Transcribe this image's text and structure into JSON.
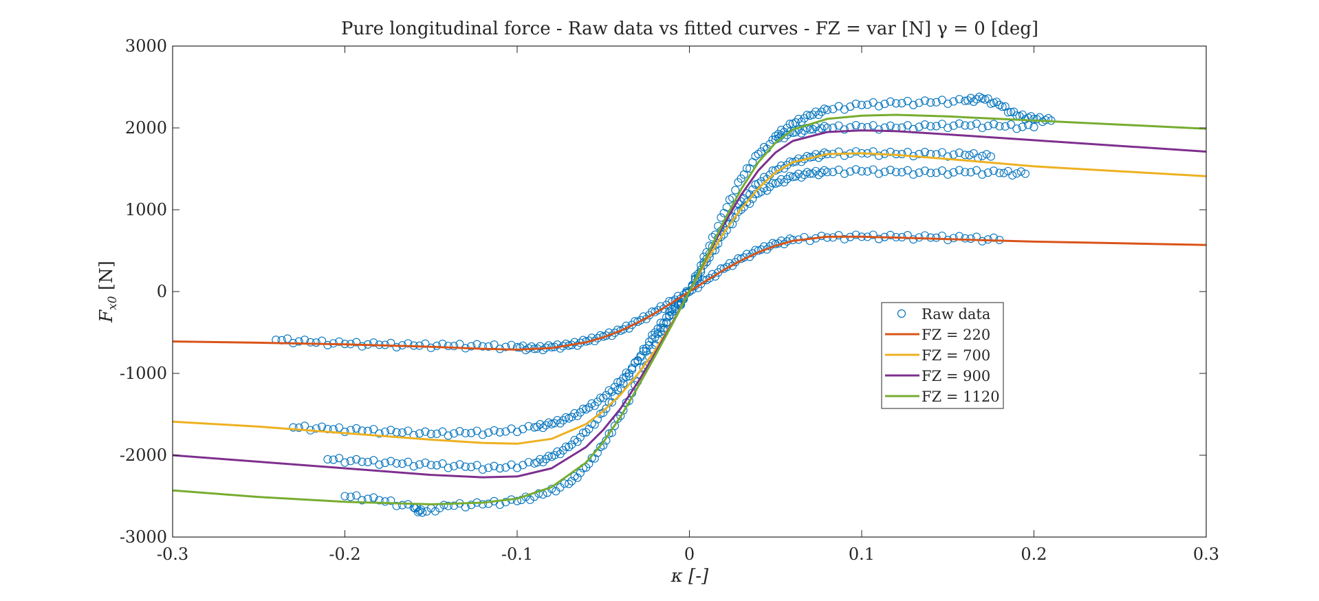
{
  "chart_data": {
    "type": "scatter",
    "title": "Pure longitudinal force - Raw data vs fitted curves - FZ = var [N] γ = 0 [deg]",
    "xlabel": "κ [-]",
    "ylabel_main": "F",
    "ylabel_sub": "x0",
    "ylabel_unit": " [N]",
    "xlim": [
      -0.3,
      0.3
    ],
    "ylim": [
      -3000,
      3000
    ],
    "xticks": [
      -0.3,
      -0.2,
      -0.1,
      0,
      0.1,
      0.2,
      0.3
    ],
    "xtick_labels": [
      "-0.3",
      "-0.2",
      "-0.1",
      "0",
      "0.1",
      "0.2",
      "0.3"
    ],
    "yticks": [
      3000,
      2000,
      1000,
      0,
      -1000,
      -2000,
      -3000
    ],
    "ytick_labels": [
      "3000",
      "2000",
      "1000",
      "0",
      "-1000",
      "-2000",
      "-3000"
    ],
    "grid": false,
    "legend_position": "center-right",
    "raw_data": {
      "name": "Raw data",
      "color": "#0072BD",
      "marker": "circle-open",
      "groups": [
        {
          "x": [
            -0.24,
            -0.22,
            -0.2,
            -0.18,
            -0.16,
            -0.14,
            -0.12,
            -0.1,
            -0.09,
            -0.08,
            -0.07,
            -0.06,
            -0.05,
            -0.04,
            -0.03,
            -0.02,
            -0.01,
            0,
            0.01,
            0.02,
            0.03,
            0.04,
            0.05,
            0.06,
            0.08,
            0.1,
            0.12,
            0.14,
            0.16,
            0.18
          ],
          "y": [
            -590,
            -620,
            -640,
            -650,
            -660,
            -665,
            -670,
            -680,
            -700,
            -680,
            -660,
            -610,
            -550,
            -480,
            -370,
            -250,
            -120,
            0,
            140,
            280,
            400,
            500,
            580,
            630,
            660,
            670,
            665,
            660,
            650,
            630
          ]
        },
        {
          "x": [
            -0.23,
            -0.21,
            -0.19,
            -0.17,
            -0.15,
            -0.13,
            -0.11,
            -0.09,
            -0.08,
            -0.07,
            -0.06,
            -0.05,
            -0.04,
            -0.03,
            -0.02,
            -0.01,
            0,
            0.01,
            0.02,
            0.03,
            0.04,
            0.05,
            0.06,
            0.07,
            0.08,
            0.1,
            0.12,
            0.14,
            0.16,
            0.18,
            0.195
          ],
          "y": [
            -1660,
            -1680,
            -1700,
            -1720,
            -1740,
            -1730,
            -1720,
            -1660,
            -1620,
            -1550,
            -1440,
            -1300,
            -1100,
            -850,
            -560,
            -280,
            0,
            360,
            700,
            1000,
            1200,
            1320,
            1400,
            1440,
            1460,
            1470,
            1460,
            1450,
            1460,
            1450,
            1440
          ]
        },
        {
          "x": [
            -0.21,
            -0.19,
            -0.17,
            -0.15,
            -0.13,
            -0.11,
            -0.09,
            -0.08,
            -0.07,
            -0.06,
            -0.05,
            -0.04,
            -0.03,
            -0.02,
            -0.01,
            0,
            0.01,
            0.02,
            0.03,
            0.04,
            0.05,
            0.06,
            0.07,
            0.08,
            0.1,
            0.12,
            0.14,
            0.16,
            0.175
          ],
          "y": [
            -2050,
            -2080,
            -2100,
            -2120,
            -2140,
            -2160,
            -2100,
            -2020,
            -1900,
            -1720,
            -1480,
            -1180,
            -840,
            -500,
            -220,
            0,
            400,
            780,
            1100,
            1320,
            1480,
            1580,
            1640,
            1680,
            1690,
            1680,
            1680,
            1670,
            1650
          ]
        },
        {
          "x": [
            -0.2,
            -0.18,
            -0.16,
            -0.155,
            -0.14,
            -0.12,
            -0.1,
            -0.085,
            -0.07,
            -0.06,
            -0.05,
            -0.04,
            -0.03,
            -0.02,
            -0.01,
            0,
            0.01,
            0.02,
            0.03,
            0.04,
            0.05,
            0.06,
            0.07,
            0.08,
            0.1,
            0.12,
            0.14,
            0.16,
            0.18,
            0.2
          ],
          "y": [
            -2500,
            -2550,
            -2640,
            -2700,
            -2620,
            -2600,
            -2560,
            -2480,
            -2350,
            -2150,
            -1880,
            -1520,
            -1100,
            -650,
            -250,
            0,
            480,
            960,
            1380,
            1680,
            1860,
            1940,
            1980,
            2000,
            2010,
            2000,
            2020,
            2030,
            2020,
            2010
          ]
        },
        {
          "x": [
            0.05,
            0.06,
            0.07,
            0.08,
            0.1,
            0.12,
            0.14,
            0.16,
            0.17,
            0.18,
            0.19,
            0.2,
            0.21
          ],
          "y": [
            1900,
            2050,
            2150,
            2220,
            2280,
            2300,
            2310,
            2330,
            2360,
            2280,
            2150,
            2110,
            2090
          ]
        }
      ]
    },
    "series": [
      {
        "name": "FZ = 220",
        "color": "#D95319",
        "x": [
          -0.3,
          -0.25,
          -0.2,
          -0.15,
          -0.12,
          -0.1,
          -0.08,
          -0.06,
          -0.05,
          -0.04,
          -0.03,
          -0.02,
          -0.01,
          0,
          0.01,
          0.02,
          0.03,
          0.04,
          0.05,
          0.06,
          0.08,
          0.1,
          0.12,
          0.15,
          0.2,
          0.25,
          0.3
        ],
        "y": [
          -610,
          -625,
          -645,
          -675,
          -700,
          -710,
          -690,
          -620,
          -560,
          -480,
          -380,
          -265,
          -135,
          0,
          135,
          265,
          380,
          480,
          560,
          620,
          670,
          670,
          660,
          640,
          610,
          590,
          570
        ]
      },
      {
        "name": "FZ = 700",
        "color": "#EDB120",
        "x": [
          -0.3,
          -0.25,
          -0.2,
          -0.15,
          -0.12,
          -0.1,
          -0.08,
          -0.06,
          -0.05,
          -0.04,
          -0.03,
          -0.02,
          -0.01,
          0,
          0.01,
          0.02,
          0.03,
          0.04,
          0.05,
          0.06,
          0.08,
          0.1,
          0.12,
          0.15,
          0.2,
          0.25,
          0.3
        ],
        "y": [
          -1590,
          -1650,
          -1730,
          -1810,
          -1850,
          -1860,
          -1800,
          -1620,
          -1460,
          -1260,
          -1010,
          -720,
          -380,
          0,
          380,
          720,
          1010,
          1260,
          1460,
          1580,
          1680,
          1690,
          1670,
          1620,
          1530,
          1470,
          1410
        ]
      },
      {
        "name": "FZ = 900",
        "color": "#7E2F8E",
        "x": [
          -0.3,
          -0.25,
          -0.2,
          -0.15,
          -0.12,
          -0.1,
          -0.08,
          -0.06,
          -0.05,
          -0.04,
          -0.03,
          -0.02,
          -0.01,
          0,
          0.01,
          0.02,
          0.03,
          0.04,
          0.05,
          0.06,
          0.08,
          0.1,
          0.12,
          0.15,
          0.2,
          0.25,
          0.3
        ],
        "y": [
          -2000,
          -2080,
          -2160,
          -2240,
          -2270,
          -2260,
          -2160,
          -1900,
          -1690,
          -1430,
          -1110,
          -760,
          -390,
          0,
          420,
          820,
          1180,
          1480,
          1700,
          1840,
          1950,
          1970,
          1960,
          1920,
          1850,
          1780,
          1710
        ]
      },
      {
        "name": "FZ = 1120",
        "color": "#77AC30",
        "x": [
          -0.3,
          -0.25,
          -0.2,
          -0.15,
          -0.12,
          -0.1,
          -0.08,
          -0.06,
          -0.05,
          -0.04,
          -0.03,
          -0.02,
          -0.01,
          0,
          0.01,
          0.02,
          0.03,
          0.04,
          0.05,
          0.06,
          0.08,
          0.1,
          0.12,
          0.15,
          0.2,
          0.25,
          0.3
        ],
        "y": [
          -2430,
          -2510,
          -2570,
          -2600,
          -2580,
          -2530,
          -2390,
          -2090,
          -1840,
          -1530,
          -1170,
          -790,
          -400,
          0,
          430,
          860,
          1250,
          1580,
          1820,
          1980,
          2110,
          2150,
          2160,
          2140,
          2090,
          2040,
          1990
        ]
      }
    ]
  }
}
